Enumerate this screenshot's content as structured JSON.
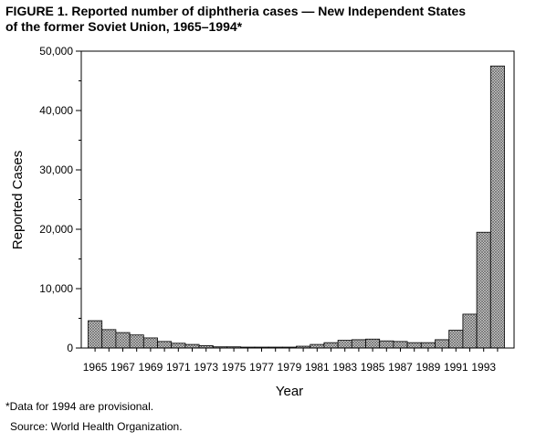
{
  "figure": {
    "title_line1": "FIGURE 1. Reported number of diphtheria cases — New Independent States",
    "title_line2": "of the former Soviet Union, 1965–1994*",
    "footnote": "*Data for 1994 are provisional.",
    "source": "Source: World Health Organization."
  },
  "chart_data": {
    "type": "bar",
    "title": "",
    "xlabel": "Year",
    "ylabel": "Reported Cases",
    "ylim": [
      0,
      50000
    ],
    "yticks": [
      0,
      10000,
      20000,
      30000,
      40000,
      50000
    ],
    "ytick_labels": [
      "0",
      "10,000",
      "20,000",
      "30,000",
      "40,000",
      "50,000"
    ],
    "xtick_labels": [
      "1965",
      "1967",
      "1969",
      "1971",
      "1973",
      "1975",
      "1977",
      "1979",
      "1981",
      "1983",
      "1985",
      "1987",
      "1989",
      "1991",
      "1993"
    ],
    "grid": false,
    "bar_fill": "#cfcfcf",
    "bar_pattern": "crosshatch",
    "categories": [
      "1965",
      "1966",
      "1967",
      "1968",
      "1969",
      "1970",
      "1971",
      "1972",
      "1973",
      "1974",
      "1975",
      "1976",
      "1977",
      "1978",
      "1979",
      "1980",
      "1981",
      "1982",
      "1983",
      "1984",
      "1985",
      "1986",
      "1987",
      "1988",
      "1989",
      "1990",
      "1991",
      "1992",
      "1993",
      "1994"
    ],
    "values": [
      4600,
      3100,
      2600,
      2200,
      1700,
      1100,
      800,
      600,
      400,
      200,
      200,
      150,
      150,
      150,
      150,
      300,
      600,
      900,
      1300,
      1400,
      1500,
      1200,
      1100,
      900,
      900,
      1400,
      3000,
      5700,
      19500,
      47500
    ]
  }
}
